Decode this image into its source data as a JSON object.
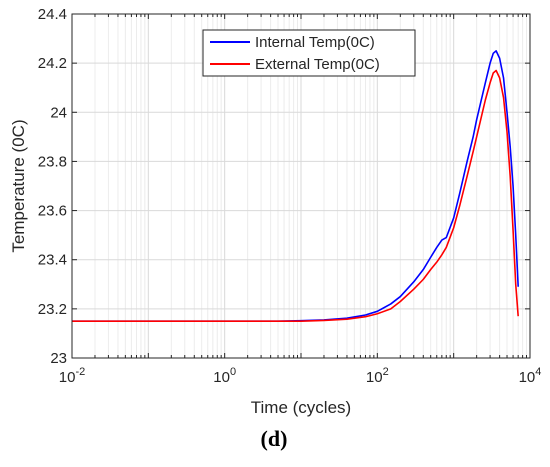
{
  "chart_data": {
    "type": "line",
    "title": "",
    "xlabel": "Time (cycles)",
    "ylabel": "Temperature (0C)",
    "panel_label": "(d)",
    "xscale": "log",
    "xlim": [
      0.01,
      10000
    ],
    "ylim": [
      23,
      24.4
    ],
    "grid": true,
    "legend_position": "top-center",
    "x_ticks": [
      {
        "value": 0.01,
        "base": "10",
        "exp": "-2"
      },
      {
        "value": 1,
        "base": "10",
        "exp": "0"
      },
      {
        "value": 100,
        "base": "10",
        "exp": "2"
      },
      {
        "value": 10000,
        "base": "10",
        "exp": "4"
      }
    ],
    "y_ticks": [
      {
        "value": 23,
        "label": "23"
      },
      {
        "value": 23.2,
        "label": "23.2"
      },
      {
        "value": 23.4,
        "label": "23.4"
      },
      {
        "value": 23.6,
        "label": "23.6"
      },
      {
        "value": 23.8,
        "label": "23.8"
      },
      {
        "value": 24,
        "label": "24"
      },
      {
        "value": 24.2,
        "label": "24.2"
      },
      {
        "value": 24.4,
        "label": "24.4"
      }
    ],
    "series": [
      {
        "name": "Internal Temp(0C)",
        "color": "#0000ff",
        "x": [
          0.01,
          0.1,
          1,
          5,
          10,
          20,
          40,
          70,
          100,
          150,
          200,
          300,
          400,
          500,
          600,
          700,
          800,
          1000,
          1200,
          1500,
          1800,
          2000,
          2300,
          2600,
          3000,
          3300,
          3600,
          4000,
          4500,
          5000,
          5500,
          6000,
          6500,
          7000
        ],
        "y": [
          23.15,
          23.15,
          23.15,
          23.15,
          23.152,
          23.155,
          23.162,
          23.175,
          23.19,
          23.22,
          23.25,
          23.31,
          23.36,
          23.41,
          23.45,
          23.48,
          23.49,
          23.57,
          23.67,
          23.8,
          23.9,
          23.97,
          24.05,
          24.12,
          24.2,
          24.24,
          24.25,
          24.22,
          24.14,
          24.0,
          23.86,
          23.7,
          23.5,
          23.29
        ]
      },
      {
        "name": "External Temp(0C)",
        "color": "#ff0000",
        "x": [
          0.01,
          0.1,
          1,
          5,
          10,
          20,
          40,
          70,
          100,
          150,
          200,
          300,
          400,
          500,
          600,
          700,
          800,
          1000,
          1200,
          1500,
          1800,
          2000,
          2300,
          2600,
          3000,
          3300,
          3600,
          4000,
          4500,
          5000,
          5500,
          6000,
          6500,
          7000
        ],
        "y": [
          23.15,
          23.15,
          23.15,
          23.15,
          23.15,
          23.153,
          23.158,
          23.168,
          23.18,
          23.2,
          23.23,
          23.28,
          23.32,
          23.36,
          23.39,
          23.42,
          23.45,
          23.53,
          23.62,
          23.74,
          23.84,
          23.9,
          23.98,
          24.05,
          24.12,
          24.16,
          24.17,
          24.14,
          24.06,
          23.92,
          23.74,
          23.52,
          23.3,
          23.17
        ]
      }
    ]
  }
}
